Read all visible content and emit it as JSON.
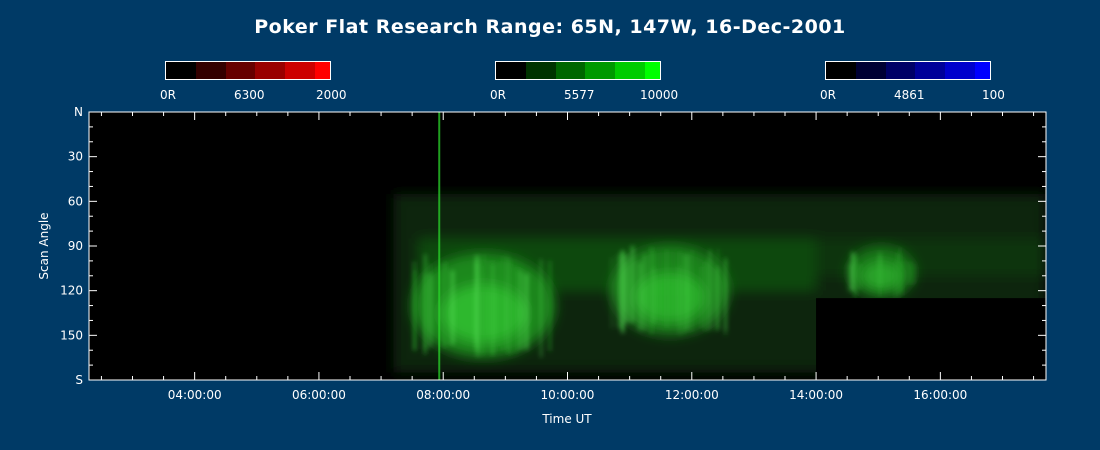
{
  "chart_data": {
    "type": "heatmap",
    "title": "Poker Flat Research Range: 65N, 147W, 16-Dec-2001",
    "xlabel": "Time UT",
    "ylabel": "Scan Angle",
    "x_range_hours_ut": [
      2.3,
      17.7
    ],
    "x_ticks": [
      {
        "hour": 4,
        "label": "04:00:00"
      },
      {
        "hour": 6,
        "label": "06:00:00"
      },
      {
        "hour": 8,
        "label": "08:00:00"
      },
      {
        "hour": 10,
        "label": "10:00:00"
      },
      {
        "hour": 12,
        "label": "12:00:00"
      },
      {
        "hour": 14,
        "label": "14:00:00"
      },
      {
        "hour": 16,
        "label": "16:00:00"
      }
    ],
    "y_range_deg": [
      0,
      180
    ],
    "y_ticks": [
      {
        "deg": 0,
        "label": "N"
      },
      {
        "deg": 30,
        "label": "30"
      },
      {
        "deg": 60,
        "label": "60"
      },
      {
        "deg": 90,
        "label": "90"
      },
      {
        "deg": 120,
        "label": "120"
      },
      {
        "deg": 150,
        "label": "150"
      },
      {
        "deg": 180,
        "label": "S"
      }
    ],
    "colorbars": [
      {
        "wavelength": "6300",
        "min_label": "0R",
        "max_label": "2000",
        "color": "#ff0000"
      },
      {
        "wavelength": "5577",
        "min_label": "0R",
        "max_label": "10000",
        "color": "#00ff00"
      },
      {
        "wavelength": "4861",
        "min_label": "0R",
        "max_label": "100",
        "color": "#0000ff"
      }
    ],
    "dominant_emission": "5577",
    "no_data_region": {
      "hour_start": 14.0,
      "hour_end": 17.7,
      "deg_start": 125,
      "deg_end": 180
    },
    "green_emission_events": [
      {
        "hour_start": 7.5,
        "hour_end": 9.8,
        "deg_start": 95,
        "deg_end": 165,
        "peak": 0.9
      },
      {
        "hour_start": 10.7,
        "hour_end": 12.6,
        "deg_start": 90,
        "deg_end": 150,
        "peak": 0.8
      },
      {
        "hour_start": 14.5,
        "hour_end": 15.6,
        "deg_start": 90,
        "deg_end": 125,
        "peak": 0.7
      }
    ],
    "grid": false
  }
}
